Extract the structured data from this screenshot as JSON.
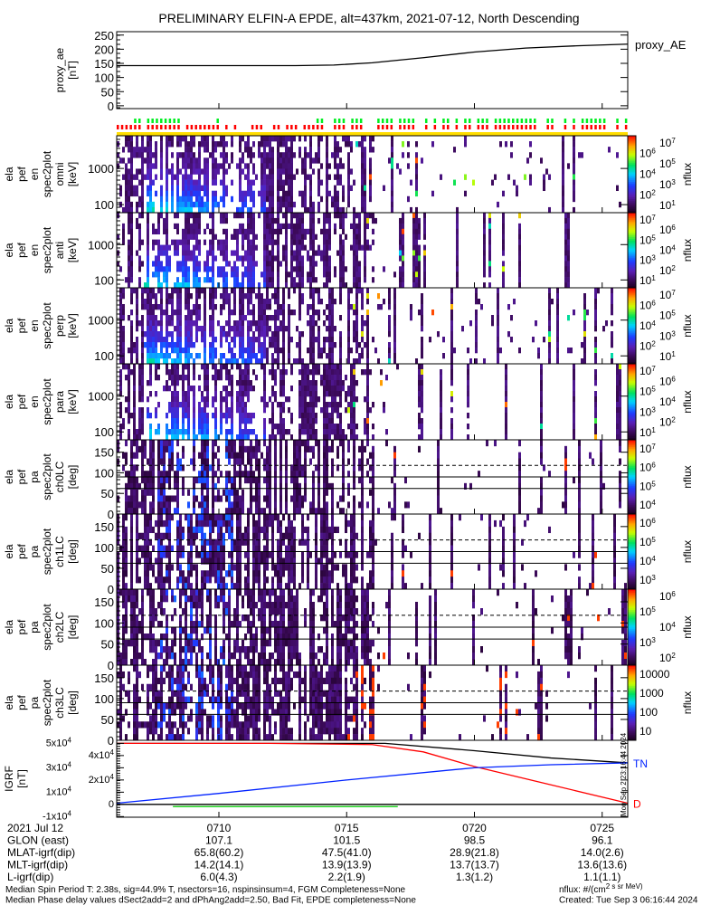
{
  "title": "PRELIMINARY ELFIN-A EPDE, alt=437km, 2021-07-12, North Descending",
  "side_stamp": "Mon Sep  2 23:16:44 2024",
  "bottom_table": {
    "rows": [
      {
        "label": "2021 Jul 12",
        "values": [
          "0710",
          "0715",
          "0720",
          "0725"
        ]
      },
      {
        "label": "GLON (east)",
        "values": [
          "107.1",
          "101.5",
          "98.5",
          "96.1"
        ]
      },
      {
        "label": "MLAT-igrf(dip)",
        "values": [
          "65.8(60.2)",
          "47.5(41.0)",
          "28.9(21.8)",
          "14.0(2.6)"
        ]
      },
      {
        "label": "MLT-igrf(dip)",
        "values": [
          "14.2(14.1)",
          "13.9(13.9)",
          "13.7(13.7)",
          "13.6(13.6)"
        ]
      },
      {
        "label": "L-igrf(dip)",
        "values": [
          "6.0(4.3)",
          "2.2(1.9)",
          "1.3(1.2)",
          "1.1(1.1)"
        ]
      }
    ]
  },
  "footer": {
    "line1": "Median Spin Period T: 2.38s, sig=44.9% T, nsectors=16, nspinsinsum=4, FGM Completeness=None",
    "line2": "Median Phase delay values dSect2add=2 and dPhAng2add=2.50, Bad Fit, EPDE completeness=None",
    "units": "nflux: #/(cm^2 s sr MeV)",
    "created": "Created: Tue Sep  3 06:16:44 2024"
  },
  "colors": {
    "status_green": "#00ee22",
    "status_red": "#ff0000",
    "status_yellow": "#ffdd00",
    "igrf_total": "#000000",
    "igrf_red": "#ff0000",
    "igrf_blue": "#0022ff",
    "igrf_green": "#00cc00"
  },
  "chart_data": {
    "type": "multi-panel",
    "title": "PRELIMINARY ELFIN-A EPDE, alt=437km, 2021-07-12, North Descending",
    "time_axis": {
      "start_minute": 6,
      "end_minute": 26,
      "hour": "07",
      "tick_minutes": [
        10,
        15,
        20,
        25
      ],
      "tick_labels": [
        "0710",
        "0715",
        "0720",
        "0725"
      ]
    },
    "status_bars": {
      "green_ranges_minutes": [
        [
          6.6,
          8.5
        ],
        [
          9.9,
          10.05
        ],
        [
          10.4,
          10.55
        ],
        [
          13.8,
          26
        ]
      ],
      "red_ranges_minutes": [
        [
          6.0,
          14.5
        ],
        [
          13.8,
          26
        ]
      ],
      "yellow_full": true
    },
    "panels": [
      {
        "id": "proxy_ae",
        "type": "line",
        "ylabel": [
          "proxy_ae",
          "[nT]"
        ],
        "legend": "proxy_AE",
        "yticks": [
          0,
          50,
          100,
          150,
          200,
          250
        ],
        "ytick_labels": [
          "0",
          "50",
          "100",
          "150",
          "200",
          "250"
        ],
        "ylim": [
          -10,
          262
        ],
        "series": [
          {
            "name": "proxy_AE",
            "x": [
              6,
              10,
              13,
              14.5,
              16,
              18,
              20,
              22,
              24,
              26
            ],
            "y": [
              142,
              142,
              142,
              144,
              152,
              170,
              190,
              204,
              212,
              218
            ]
          }
        ]
      },
      {
        "id": "en_omni",
        "type": "heatmap",
        "scale": "log",
        "ylabel": [
          "ela",
          "pef",
          "en",
          "spec2plot",
          "omni",
          "[keV]"
        ],
        "yticks": [
          100,
          1000
        ],
        "ytick_labels": [
          "100",
          "1000"
        ],
        "ylim": [
          60,
          8000
        ],
        "colorbar": {
          "label": "nflux",
          "range_log": [
            0.8,
            7.2
          ],
          "ticks": [
            "10^1",
            "10^2",
            "10^3",
            "10^4",
            "10^5",
            "10^6",
            "10^7"
          ]
        }
      },
      {
        "id": "en_anti",
        "type": "heatmap",
        "scale": "log",
        "ylabel": [
          "ela",
          "pef",
          "en",
          "spec2plot",
          "anti",
          "[keV]"
        ],
        "yticks": [
          100,
          1000
        ],
        "ytick_labels": [
          "100",
          "1000"
        ],
        "ylim": [
          60,
          8000
        ],
        "colorbar": {
          "label": "nflux",
          "range_log": [
            0.8,
            7.2
          ],
          "ticks": [
            "10^1",
            "10^2",
            "10^3",
            "10^4",
            "10^5",
            "10^6",
            "10^7"
          ]
        }
      },
      {
        "id": "en_perp",
        "type": "heatmap",
        "scale": "log",
        "ylabel": [
          "ela",
          "pef",
          "en",
          "spec2plot",
          "perp",
          "[keV]"
        ],
        "yticks": [
          100,
          1000
        ],
        "ytick_labels": [
          "100",
          "1000"
        ],
        "ylim": [
          60,
          8000
        ],
        "colorbar": {
          "label": "nflux",
          "range_log": [
            0.8,
            7.2
          ],
          "ticks": [
            "10^1",
            "10^2",
            "10^3",
            "10^4",
            "10^5",
            "10^6",
            "10^7"
          ]
        }
      },
      {
        "id": "en_para",
        "type": "heatmap",
        "scale": "log",
        "ylabel": [
          "ela",
          "pef",
          "en",
          "spec2plot",
          "para",
          "[keV]"
        ],
        "yticks": [
          100,
          1000
        ],
        "ytick_labels": [
          "100",
          "1000"
        ],
        "ylim": [
          60,
          8000
        ],
        "colorbar": {
          "label": "nflux",
          "range_log": [
            0.8,
            7.2
          ],
          "ticks": [
            "10^1",
            "10^2",
            "10^3",
            "10^4",
            "10^5",
            "10^6",
            "10^7"
          ]
        }
      },
      {
        "id": "pa_ch0",
        "type": "heatmap",
        "scale": "linear",
        "ylabel": [
          "ela",
          "pef",
          "pa",
          "spec2plot",
          "ch0LC",
          "[deg]"
        ],
        "yticks": [
          0,
          50,
          100,
          150
        ],
        "ytick_labels": [
          "0",
          "50",
          "100",
          "150"
        ],
        "ylim": [
          0,
          180
        ],
        "loss_cone_deg": [
          62,
          90,
          118
        ],
        "colorbar": {
          "label": "nflux",
          "range_log": [
            3.5,
            7.1
          ],
          "ticks": [
            "10^4",
            "10^5",
            "10^6",
            "10^7"
          ]
        }
      },
      {
        "id": "pa_ch1",
        "type": "heatmap",
        "scale": "linear",
        "ylabel": [
          "ela",
          "pef",
          "pa",
          "spec2plot",
          "ch1LC",
          "[deg]"
        ],
        "yticks": [
          0,
          50,
          100,
          150
        ],
        "ytick_labels": [
          "0",
          "50",
          "100",
          "150"
        ],
        "ylim": [
          0,
          180
        ],
        "loss_cone_deg": [
          62,
          90,
          118
        ],
        "colorbar": {
          "label": "nflux",
          "range_log": [
            2.9,
            6.3
          ],
          "ticks": [
            "10^3",
            "10^4",
            "10^5",
            "10^6"
          ]
        }
      },
      {
        "id": "pa_ch2",
        "type": "heatmap",
        "scale": "linear",
        "ylabel": [
          "ela",
          "pef",
          "pa",
          "spec2plot",
          "ch2LC",
          "[deg]"
        ],
        "yticks": [
          0,
          50,
          100,
          150
        ],
        "ytick_labels": [
          "0",
          "50",
          "100",
          "150"
        ],
        "ylim": [
          0,
          180
        ],
        "loss_cone_deg": [
          62,
          90,
          118
        ],
        "colorbar": {
          "label": "nflux",
          "range_log": [
            1.8,
            6.05
          ],
          "ticks": [
            "10^2",
            "10^3",
            "10^4",
            "10^5",
            "10^6"
          ]
        }
      },
      {
        "id": "pa_ch3",
        "type": "heatmap",
        "scale": "linear",
        "ylabel": [
          "ela",
          "pef",
          "pa",
          "spec2plot",
          "ch3LC",
          "[deg]"
        ],
        "yticks": [
          0,
          50,
          100,
          150
        ],
        "ytick_labels": [
          "0",
          "50",
          "100",
          "150"
        ],
        "ylim": [
          0,
          180
        ],
        "loss_cone_deg": [
          62,
          90,
          118
        ],
        "colorbar": {
          "label": "nflux",
          "range_log": [
            0.95,
            4.1
          ],
          "ticks": [
            "10",
            "100",
            "1000",
            "10000"
          ]
        }
      },
      {
        "id": "igrf",
        "type": "line",
        "ylabel": [
          "IGRF",
          "[nT]"
        ],
        "yticks": [
          -10000,
          0,
          10000,
          20000,
          30000,
          40000,
          50000
        ],
        "ytick_labels": [
          "-1x10^4",
          "0",
          "1x10^4",
          "2x10^4",
          "3x10^4",
          "4x10^4",
          "5x10^4"
        ],
        "ylim": [
          -10500,
          52500
        ],
        "series": [
          {
            "name": "total",
            "color_key": "igrf_total",
            "x": [
              6,
              16.5,
              20,
              23,
              26
            ],
            "y": [
              50000,
              50000,
              44000,
              38000,
              34000
            ]
          },
          {
            "name": "D",
            "label": "D",
            "color_key": "igrf_red",
            "x": [
              6,
              12,
              16,
              18,
              20,
              23,
              26
            ],
            "y": [
              50000,
              50000,
              49000,
              43000,
              31000,
              16000,
              1000
            ]
          },
          {
            "name": "TN",
            "label": "TN",
            "color_key": "igrf_blue",
            "x": [
              6,
              10,
              15,
              20,
              23,
              26
            ],
            "y": [
              1000,
              9000,
              20000,
              30000,
              32500,
              34000
            ]
          },
          {
            "name": "green",
            "color_key": "igrf_green",
            "x": [
              8.2,
              17
            ],
            "y": [
              -1800,
              -1800
            ]
          }
        ]
      }
    ]
  }
}
